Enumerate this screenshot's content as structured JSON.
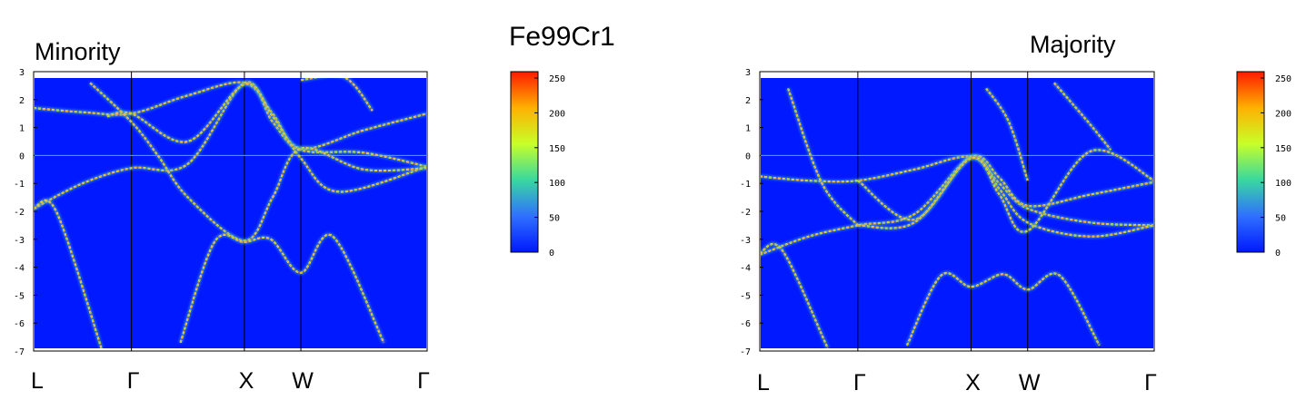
{
  "figure": {
    "title": "Fe99Cr1"
  },
  "chart_data": [
    {
      "type": "heatmap",
      "title": "Minority",
      "xlabel": "",
      "ylabel": "",
      "ylim": [
        -7,
        3
      ],
      "y_ticks": [
        3,
        2,
        1,
        0,
        -1,
        -2,
        -3,
        -4,
        -5,
        -6,
        -7
      ],
      "k_points": [
        "L",
        "Γ",
        "X",
        "W",
        "Γ"
      ],
      "k_path_positions": [
        0,
        0.866,
        1.866,
        2.366,
        3.484
      ],
      "fermi_level": 0,
      "colorbar": {
        "min": 0,
        "max": 250,
        "ticks": [
          250,
          200,
          150,
          100,
          50,
          0
        ]
      },
      "bands": [
        {
          "name": "b1",
          "x": [
            0,
            0.433,
            0.866,
            1.366,
            1.866,
            2.116,
            2.366,
            2.92,
            3.484
          ],
          "y": [
            1.7,
            1.55,
            1.5,
            2.15,
            2.6,
            1.5,
            0.25,
            0.9,
            1.5
          ]
        },
        {
          "name": "b2",
          "x": [
            0,
            0.433,
            0.866,
            1.366,
            1.866,
            2.116,
            2.366,
            2.92,
            3.484
          ],
          "y": [
            -1.9,
            -1.0,
            -0.45,
            -0.3,
            2.6,
            1.2,
            0.2,
            0.1,
            -0.4
          ]
        },
        {
          "name": "b3",
          "x": [
            0.65,
            0.866,
            1.366,
            1.866,
            2.116,
            2.366,
            2.7,
            3.484
          ],
          "y": [
            1.4,
            1.5,
            0.5,
            2.55,
            1.4,
            -0.1,
            -1.3,
            -0.4
          ]
        },
        {
          "name": "b4",
          "x": [
            0.5,
            0.866,
            1.1,
            1.366,
            1.866,
            2.116,
            2.366,
            2.92,
            3.484
          ],
          "y": [
            2.6,
            1.2,
            0.0,
            -1.5,
            -3.05,
            -1.5,
            0.25,
            -0.5,
            -0.45
          ]
        },
        {
          "name": "b5",
          "x": [
            1.3,
            1.6,
            1.866,
            2.1,
            2.366,
            2.65,
            3.1
          ],
          "y": [
            -6.7,
            -3.1,
            -3.1,
            -3.0,
            -4.2,
            -2.9,
            -6.7
          ]
        },
        {
          "name": "b6",
          "x": [
            0,
            0.2,
            0.6
          ],
          "y": [
            -1.9,
            -2.0,
            -6.9
          ]
        },
        {
          "name": "b7",
          "x": [
            2.366,
            2.75,
            3.0
          ],
          "y": [
            2.7,
            2.8,
            1.6
          ]
        }
      ]
    },
    {
      "type": "heatmap",
      "title": "Majority",
      "xlabel": "",
      "ylabel": "",
      "ylim": [
        -7,
        3
      ],
      "y_ticks": [
        3,
        2,
        1,
        0,
        -1,
        -2,
        -3,
        -4,
        -5,
        -6,
        -7
      ],
      "k_points": [
        "L",
        "Γ",
        "X",
        "W",
        "Γ"
      ],
      "k_path_positions": [
        0,
        0.866,
        1.866,
        2.366,
        3.484
      ],
      "fermi_level": 0,
      "colorbar": {
        "min": 0,
        "max": 250,
        "ticks": [
          250,
          200,
          150,
          100,
          50,
          0
        ]
      },
      "bands": [
        {
          "name": "b1",
          "x": [
            0,
            0.433,
            0.866,
            1.366,
            1.866,
            2.116,
            2.366,
            2.92,
            3.484
          ],
          "y": [
            -0.75,
            -0.9,
            -0.9,
            -0.5,
            -0.05,
            -1.0,
            -1.9,
            -2.4,
            -2.5
          ]
        },
        {
          "name": "b2",
          "x": [
            0,
            0.433,
            0.866,
            1.366,
            1.866,
            2.116,
            2.366,
            2.92,
            3.484
          ],
          "y": [
            -3.55,
            -2.9,
            -2.5,
            -2.1,
            -0.05,
            -0.8,
            -1.8,
            -1.4,
            -0.95
          ]
        },
        {
          "name": "b3",
          "x": [
            0.866,
            1.366,
            1.866,
            2.116,
            2.366,
            2.92,
            3.484
          ],
          "y": [
            -0.9,
            -2.3,
            -0.05,
            -1.2,
            -2.4,
            -2.9,
            -2.5
          ]
        },
        {
          "name": "b4",
          "x": [
            0.866,
            1.366,
            1.866,
            2.116,
            2.366,
            2.92,
            3.484
          ],
          "y": [
            -2.5,
            -2.4,
            -0.1,
            -1.4,
            -2.7,
            0.15,
            -0.9
          ]
        },
        {
          "name": "b5",
          "x": [
            1.3,
            1.6,
            1.866,
            2.15,
            2.366,
            2.65,
            3.0
          ],
          "y": [
            -6.8,
            -4.3,
            -4.7,
            -4.25,
            -4.8,
            -4.3,
            -6.8
          ]
        },
        {
          "name": "b6",
          "x": [
            0,
            0.2,
            0.6
          ],
          "y": [
            -3.5,
            -3.4,
            -6.9
          ]
        },
        {
          "name": "b7",
          "x": [
            0.25,
            0.55,
            0.866
          ],
          "y": [
            2.4,
            -1.0,
            -2.5
          ]
        },
        {
          "name": "b8",
          "x": [
            2.0,
            2.2,
            2.366
          ],
          "y": [
            2.4,
            1.2,
            -0.9
          ]
        },
        {
          "name": "b9",
          "x": [
            2.6,
            2.9,
            3.1
          ],
          "y": [
            2.6,
            1.2,
            0.2
          ]
        }
      ]
    }
  ]
}
